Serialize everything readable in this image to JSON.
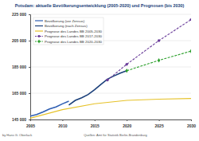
{
  "chart_data": {
    "type": "line",
    "title": "Potsdam: aktuelle Bevölkerungsentwicklung (2005-2020) und Prognosen (bis 2030)",
    "annotations": [
      "by Hans G. Oberlack",
      "Quellen: Amt für Statistik Berlin-Brandenburg"
    ],
    "xlim": [
      2005,
      2030
    ],
    "xticks": [
      2005,
      2010,
      2015,
      2020,
      2025,
      2030
    ],
    "ylim": [
      145000,
      225000
    ],
    "yticks": [
      {
        "value": 145000,
        "label": "145 000"
      },
      {
        "value": 165000,
        "label": "165 000"
      },
      {
        "value": 185000,
        "label": "185 000"
      },
      {
        "value": 205000,
        "label": "205 000"
      },
      {
        "value": 225000,
        "label": "225 000"
      }
    ],
    "grid": true,
    "legend": "upper left",
    "series": [
      {
        "name": "Bevölkerung (vor Zensus)",
        "color": "#2f5fb3",
        "line_style": "solid",
        "marker": "none",
        "x": [
          2005,
          2006,
          2007,
          2008,
          2009,
          2010,
          2011
        ],
        "values": [
          147600,
          148800,
          150800,
          153000,
          154600,
          156900,
          158900
        ]
      },
      {
        "name": "Bevölkerung (nach Zensus)",
        "color": "#1a3f7a",
        "line_style": "solid",
        "marker": "none",
        "x": [
          2011,
          2012,
          2013,
          2014,
          2015,
          2016,
          2017,
          2018,
          2019,
          2020
        ],
        "values": [
          156000,
          159500,
          161500,
          164000,
          167700,
          171800,
          175700,
          178100,
          180300,
          182100
        ]
      },
      {
        "name": "Prognose des Landes BB 2005-2030",
        "color": "#e6c229",
        "line_style": "solid",
        "marker": "none",
        "x": [
          2005,
          2010,
          2015,
          2020,
          2025,
          2030
        ],
        "values": [
          146000,
          152500,
          157000,
          159500,
          160500,
          161000
        ]
      },
      {
        "name": "Prognose des Landes BB 2017-2030",
        "color": "#6a3d9a",
        "line_style": "dashed",
        "marker": "circle",
        "x": [
          2017,
          2020,
          2025,
          2030
        ],
        "values": [
          175000,
          187000,
          205000,
          221000
        ]
      },
      {
        "name": "Prognose des Landes BB 2020-2030",
        "color": "#2ca02c",
        "line_style": "dashed",
        "marker": "diamond",
        "x": [
          2020,
          2025,
          2030
        ],
        "values": [
          182100,
          190000,
          197000
        ]
      }
    ]
  }
}
